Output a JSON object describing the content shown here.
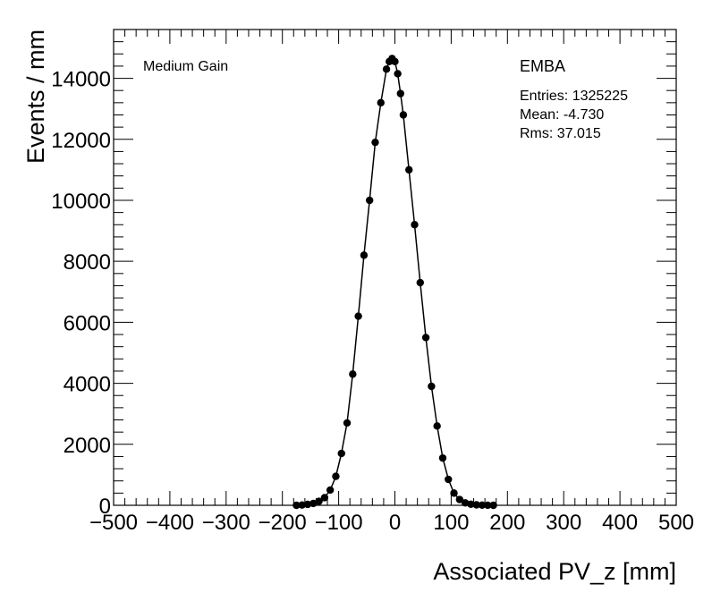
{
  "chart_data": {
    "type": "scatter",
    "title": "",
    "xlabel": "Associated PV_z [mm]",
    "ylabel": "Events / mm",
    "xlim": [
      -500,
      500
    ],
    "ylim": [
      0,
      15600
    ],
    "xticks": [
      -500,
      -400,
      -300,
      -200,
      -100,
      0,
      100,
      200,
      300,
      400,
      500
    ],
    "yticks": [
      0,
      2000,
      4000,
      6000,
      8000,
      10000,
      12000,
      14000
    ],
    "xtick_labels": [
      "−500",
      "−400",
      "−300",
      "−200",
      "−100",
      "0",
      "100",
      "200",
      "300",
      "400",
      "500"
    ],
    "ytick_labels": [
      "0",
      "2000",
      "4000",
      "6000",
      "8000",
      "10000",
      "12000",
      "14000"
    ],
    "grid": false,
    "annotations": {
      "gain_label": "Medium Gain",
      "region_label": "EMBA",
      "entries": "Entries: 1325225",
      "mean": "Mean: -4.730",
      "rms": "Rms: 37.015"
    },
    "series": [
      {
        "marker": "filled-circle",
        "color": "#000000",
        "x": [
          -175,
          -165,
          -155,
          -145,
          -135,
          -125,
          -115,
          -105,
          -95,
          -85,
          -75,
          -65,
          -55,
          -45,
          -35,
          -25,
          -15,
          -10,
          -5,
          0,
          5,
          10,
          15,
          25,
          35,
          45,
          55,
          65,
          75,
          85,
          95,
          105,
          115,
          125,
          135,
          145,
          155,
          165,
          175
        ],
        "y": [
          0,
          10,
          30,
          60,
          130,
          250,
          500,
          950,
          1700,
          2700,
          4300,
          6200,
          8200,
          10000,
          11900,
          13200,
          14300,
          14550,
          14650,
          14550,
          14150,
          13500,
          12800,
          11000,
          9200,
          7300,
          5500,
          3900,
          2600,
          1550,
          850,
          400,
          190,
          80,
          35,
          15,
          6,
          2,
          0
        ]
      }
    ]
  }
}
